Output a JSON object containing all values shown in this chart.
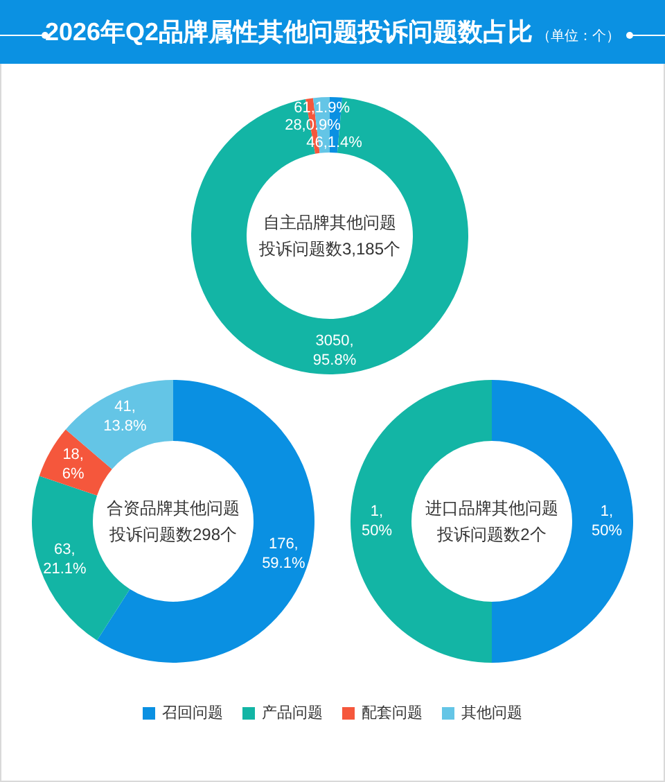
{
  "chart_data": {
    "type": "donut",
    "title": "2026年Q2品牌属性其他问题投诉问题数占比",
    "subtitle": "（单位：个）",
    "categories": [
      "召回问题",
      "产品问题",
      "配套问题",
      "其他问题"
    ],
    "colors": [
      "#0a90e2",
      "#13b5a5",
      "#f5573c",
      "#64c5e6"
    ],
    "legend": "bottom",
    "series": [
      {
        "name": "自主品牌其他问题投诉问题数3,185个",
        "values": [
          46,
          3050,
          28,
          61
        ],
        "value_labels": [
          "46,1.4%",
          "3050,\n95.8%",
          "28,0.9%",
          "61,1.9%"
        ]
      },
      {
        "name": "合资品牌其他问题投诉问题数298个",
        "values": [
          176,
          63,
          18,
          41
        ],
        "value_labels": [
          "176,\n59.1%",
          "63,\n21.1%",
          "18,\n6%",
          "41,\n13.8%"
        ]
      },
      {
        "name": "进口品牌其他问题投诉问题数2个",
        "values": [
          1,
          1,
          0,
          0
        ],
        "value_labels": [
          "1,\n50%",
          "1,\n50%",
          null,
          null
        ]
      }
    ]
  }
}
